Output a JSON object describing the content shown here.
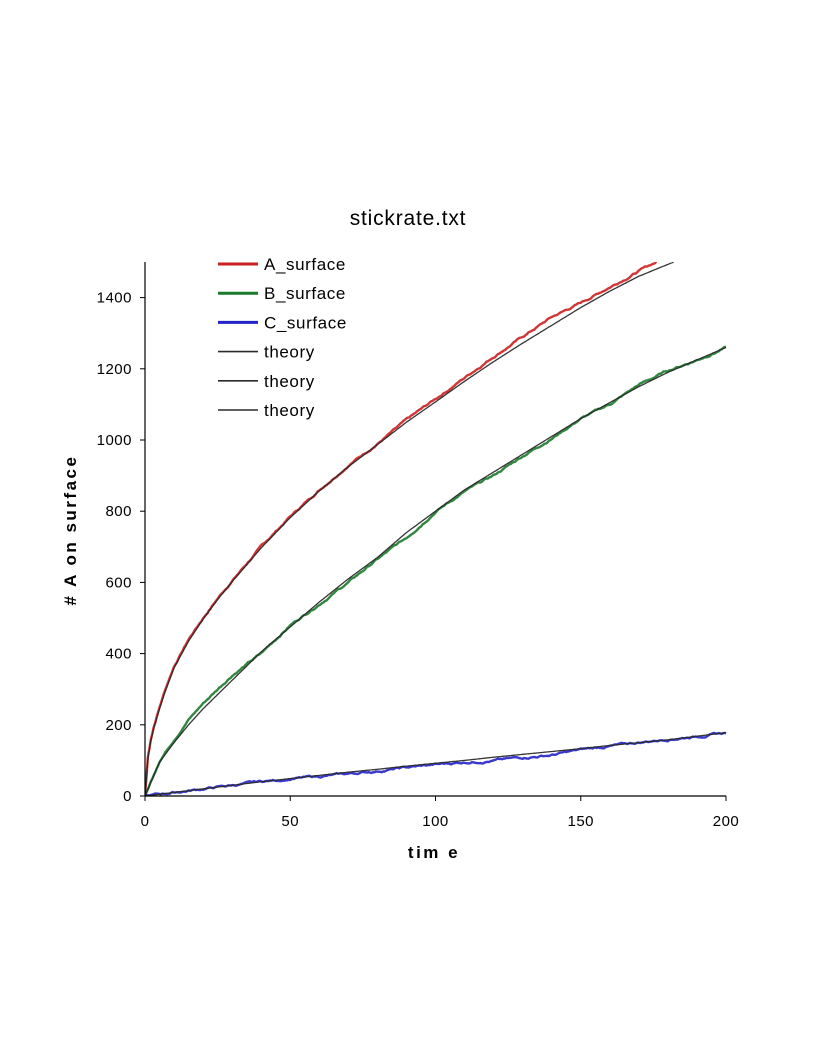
{
  "chart_data": {
    "type": "line",
    "title": "stickrate.txt",
    "xlabel": "tim e",
    "ylabel": "# A on surface",
    "xlim": [
      0,
      200
    ],
    "ylim": [
      0,
      1500
    ],
    "xticks": [
      0,
      50,
      100,
      150,
      200
    ],
    "yticks": [
      0,
      200,
      400,
      600,
      800,
      1000,
      1200,
      1400
    ],
    "grid": false,
    "legend_position": "top-left",
    "series": [
      {
        "name": "A_surface",
        "color": "#cc1f1f",
        "style": "noisy",
        "x": [
          0,
          1,
          2,
          3,
          5,
          7,
          10,
          15,
          20,
          25,
          30,
          40,
          50,
          60,
          70,
          80,
          90,
          100,
          110,
          120,
          130,
          140,
          150,
          160,
          170,
          176
        ],
        "y": [
          0,
          110,
          160,
          195,
          250,
          300,
          365,
          440,
          500,
          555,
          605,
          700,
          785,
          860,
          930,
          990,
          1055,
          1115,
          1175,
          1235,
          1290,
          1345,
          1385,
          1430,
          1475,
          1500
        ]
      },
      {
        "name": "B_surface",
        "color": "#1a7a2a",
        "style": "noisy",
        "x": [
          0,
          5,
          10,
          15,
          20,
          25,
          30,
          40,
          50,
          60,
          70,
          80,
          90,
          100,
          110,
          120,
          130,
          140,
          150,
          160,
          170,
          180,
          190,
          200
        ],
        "y": [
          0,
          100,
          160,
          215,
          260,
          300,
          340,
          400,
          480,
          540,
          600,
          665,
          725,
          800,
          855,
          900,
          955,
          1005,
          1060,
          1100,
          1155,
          1195,
          1225,
          1260
        ]
      },
      {
        "name": "C_surface",
        "color": "#2323c8",
        "style": "noisy",
        "x": [
          0,
          10,
          20,
          30,
          40,
          50,
          60,
          70,
          80,
          90,
          100,
          110,
          120,
          130,
          140,
          150,
          160,
          170,
          180,
          190,
          200
        ],
        "y": [
          0,
          10,
          20,
          30,
          40,
          48,
          55,
          62,
          70,
          80,
          88,
          95,
          100,
          108,
          115,
          130,
          140,
          150,
          160,
          168,
          177
        ]
      },
      {
        "name": "theory",
        "color": "#2a2a2a",
        "style": "smooth",
        "x": [
          0,
          1,
          2,
          3,
          5,
          7,
          10,
          15,
          20,
          25,
          30,
          40,
          50,
          60,
          70,
          80,
          90,
          100,
          110,
          120,
          130,
          140,
          150,
          160,
          170,
          182
        ],
        "y": [
          0,
          105,
          155,
          190,
          245,
          295,
          360,
          435,
          497,
          552,
          602,
          697,
          782,
          857,
          925,
          987,
          1050,
          1107,
          1165,
          1220,
          1272,
          1322,
          1372,
          1418,
          1460,
          1500
        ]
      },
      {
        "name": "theory",
        "color": "#2a2a2a",
        "style": "smooth",
        "x": [
          0,
          5,
          10,
          15,
          20,
          25,
          30,
          40,
          50,
          60,
          70,
          80,
          90,
          100,
          110,
          120,
          130,
          140,
          150,
          160,
          170,
          180,
          190,
          200
        ],
        "y": [
          0,
          95,
          150,
          200,
          245,
          285,
          325,
          405,
          475,
          545,
          610,
          670,
          740,
          800,
          860,
          910,
          960,
          1010,
          1060,
          1105,
          1150,
          1190,
          1225,
          1260
        ]
      },
      {
        "name": "theory",
        "color": "#2a2a2a",
        "style": "smooth",
        "x": [
          0,
          10,
          20,
          30,
          40,
          50,
          60,
          70,
          80,
          90,
          100,
          110,
          120,
          130,
          140,
          150,
          160,
          170,
          180,
          190,
          200
        ],
        "y": [
          0,
          10,
          20,
          30,
          40,
          49,
          58,
          67,
          75,
          84,
          92,
          100,
          109,
          117,
          125,
          133,
          142,
          150,
          158,
          168,
          178
        ]
      }
    ]
  }
}
